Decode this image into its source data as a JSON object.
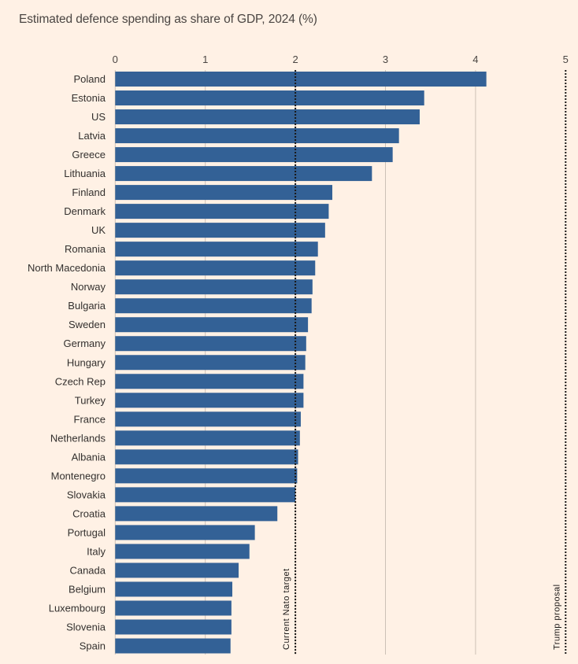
{
  "chart_data": {
    "type": "bar",
    "orientation": "horizontal",
    "title": "Estimated defence spending as share of GDP, 2024 (%)",
    "xlabel": "",
    "ylabel": "",
    "xlim": [
      0,
      5
    ],
    "x_ticks": [
      0,
      1,
      2,
      3,
      4,
      5
    ],
    "x_tick_labels": [
      "0",
      "1",
      "2",
      "3",
      "4",
      "5"
    ],
    "tick_position": "top",
    "grid": true,
    "bar_color": "#336196",
    "categories": [
      "Poland",
      "Estonia",
      "US",
      "Latvia",
      "Greece",
      "Lithuania",
      "Finland",
      "Denmark",
      "UK",
      "Romania",
      "North Macedonia",
      "Norway",
      "Bulgaria",
      "Sweden",
      "Germany",
      "Hungary",
      "Czech Rep",
      "Turkey",
      "France",
      "Netherlands",
      "Albania",
      "Montenegro",
      "Slovakia",
      "Croatia",
      "Portugal",
      "Italy",
      "Canada",
      "Belgium",
      "Luxembourg",
      "Slovenia",
      "Spain"
    ],
    "values": [
      4.12,
      3.43,
      3.38,
      3.15,
      3.08,
      2.85,
      2.41,
      2.37,
      2.33,
      2.25,
      2.22,
      2.19,
      2.18,
      2.14,
      2.12,
      2.11,
      2.09,
      2.09,
      2.06,
      2.05,
      2.03,
      2.02,
      2.0,
      1.8,
      1.55,
      1.49,
      1.37,
      1.3,
      1.29,
      1.29,
      1.28
    ],
    "reference_lines": [
      {
        "value": 2,
        "label": "Current Nato target",
        "style": "dotted"
      },
      {
        "value": 5,
        "label": "Trump proposal",
        "style": "dotted"
      }
    ]
  }
}
